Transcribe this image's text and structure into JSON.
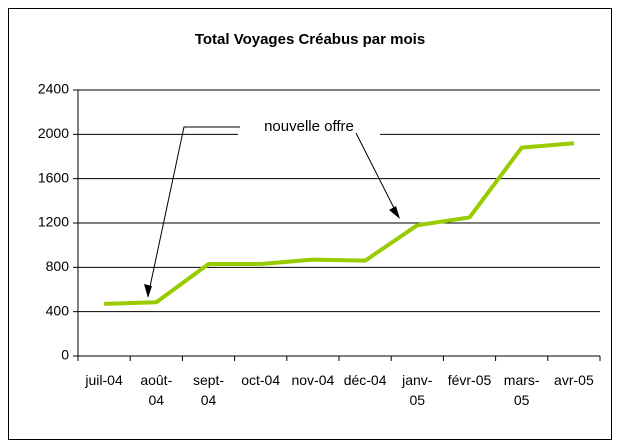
{
  "chart_data": {
    "type": "line",
    "title": "Total Voyages Créabus par mois",
    "categories": [
      "juil-04",
      "août-04",
      "sept-04",
      "oct-04",
      "nov-04",
      "déc-04",
      "janv-05",
      "févr-05",
      "mars-05",
      "avr-05"
    ],
    "series": [
      {
        "name": "Total Voyages",
        "color": "#99cc00",
        "values": [
          470,
          485,
          830,
          830,
          870,
          860,
          1180,
          1250,
          1880,
          1920
        ]
      }
    ],
    "ylim": [
      0,
      2400
    ],
    "yticks": [
      0,
      400,
      800,
      1200,
      1600,
      2000,
      2400
    ],
    "grid": true,
    "annotations": [
      "nouvelle offre"
    ]
  }
}
